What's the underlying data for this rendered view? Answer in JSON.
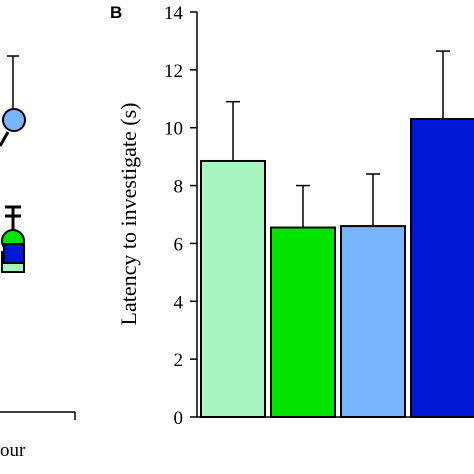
{
  "panel_a": {
    "xlabel_fragment": "our"
  },
  "panel_b": {
    "letter": "B"
  },
  "colors": {
    "light_green": "#a8f5c0",
    "green": "#00e400",
    "light_blue": "#78b4ff",
    "blue": "#0018d6",
    "axis": "#000000"
  },
  "chart_data": {
    "type": "bar",
    "ylabel": "Latency to investigate (s)",
    "ylim": [
      0,
      14
    ],
    "yticks": [
      0,
      2,
      4,
      6,
      8,
      10,
      12,
      14
    ],
    "grid": false,
    "legend": "none",
    "series": [
      {
        "values": [
          8.85,
          6.55,
          6.6,
          10.3
        ],
        "errors": [
          2.05,
          1.45,
          1.8,
          2.35
        ],
        "colors": [
          "#a8f5c0",
          "#00e400",
          "#78b4ff",
          "#0018d6"
        ]
      }
    ]
  }
}
